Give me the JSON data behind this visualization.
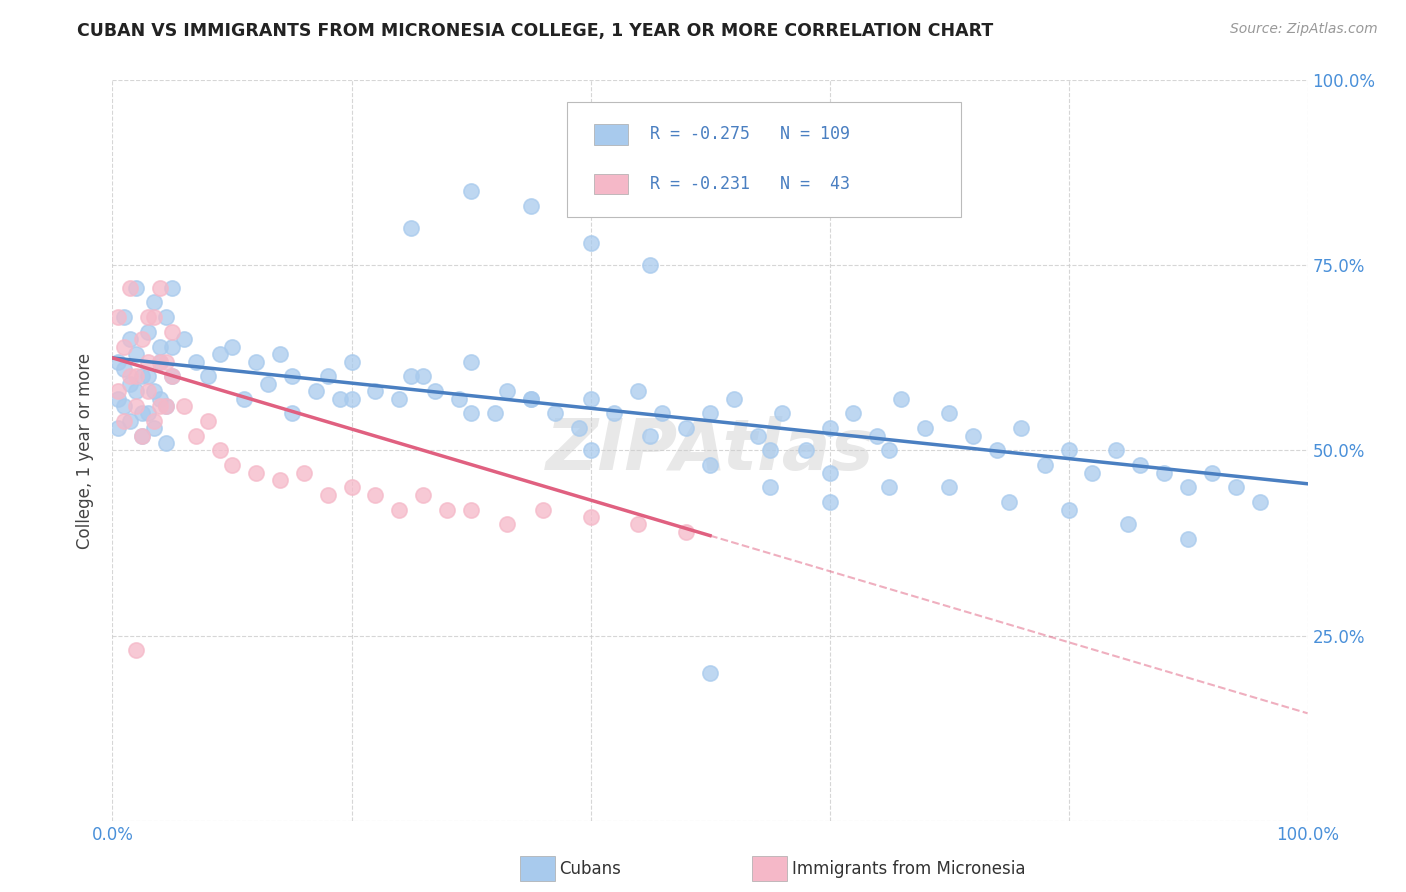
{
  "title": "CUBAN VS IMMIGRANTS FROM MICRONESIA COLLEGE, 1 YEAR OR MORE CORRELATION CHART",
  "source": "Source: ZipAtlas.com",
  "ylabel": "College, 1 year or more",
  "xlim": [
    0.0,
    1.0
  ],
  "ylim": [
    0.0,
    1.0
  ],
  "legend_r1": "-0.275",
  "legend_n1": "109",
  "legend_r2": "-0.231",
  "legend_n2": " 43",
  "legend_label1": "Cubans",
  "legend_label2": "Immigrants from Micronesia",
  "blue_color": "#A8CAED",
  "pink_color": "#F5B8C8",
  "blue_line_color": "#4A7FC1",
  "pink_line_color": "#E06080",
  "axis_color": "#4A90D9",
  "grid_color": "#CCCCCC",
  "watermark": "ZIPAtlas",
  "trendline_blue_x0": 0.0,
  "trendline_blue_y0": 0.625,
  "trendline_blue_x1": 1.0,
  "trendline_blue_y1": 0.455,
  "trendline_pink_x0": 0.0,
  "trendline_pink_y0": 0.625,
  "trendline_pink_x1": 0.5,
  "trendline_pink_y1": 0.385,
  "trendline_pink_dash_x0": 0.5,
  "trendline_pink_dash_y0": 0.385,
  "trendline_pink_dash_x1": 1.0,
  "trendline_pink_dash_y1": 0.145,
  "cubans_x": [
    0.005,
    0.01,
    0.015,
    0.02,
    0.025,
    0.03,
    0.035,
    0.04,
    0.045,
    0.05,
    0.005,
    0.01,
    0.015,
    0.02,
    0.025,
    0.03,
    0.035,
    0.04,
    0.045,
    0.05,
    0.005,
    0.01,
    0.015,
    0.02,
    0.025,
    0.03,
    0.035,
    0.04,
    0.045,
    0.05,
    0.06,
    0.07,
    0.08,
    0.09,
    0.1,
    0.11,
    0.12,
    0.13,
    0.14,
    0.15,
    0.17,
    0.18,
    0.19,
    0.2,
    0.22,
    0.24,
    0.26,
    0.27,
    0.29,
    0.3,
    0.32,
    0.33,
    0.35,
    0.37,
    0.39,
    0.4,
    0.42,
    0.44,
    0.46,
    0.48,
    0.5,
    0.52,
    0.54,
    0.56,
    0.58,
    0.6,
    0.62,
    0.64,
    0.66,
    0.68,
    0.7,
    0.72,
    0.74,
    0.76,
    0.78,
    0.8,
    0.82,
    0.84,
    0.86,
    0.88,
    0.9,
    0.92,
    0.94,
    0.96,
    0.15,
    0.2,
    0.25,
    0.3,
    0.35,
    0.4,
    0.45,
    0.5,
    0.55,
    0.6,
    0.65,
    0.7,
    0.75,
    0.8,
    0.85,
    0.9,
    0.25,
    0.3,
    0.35,
    0.4,
    0.45,
    0.5,
    0.55,
    0.6,
    0.65
  ],
  "cubans_y": [
    0.62,
    0.68,
    0.65,
    0.72,
    0.6,
    0.66,
    0.7,
    0.64,
    0.68,
    0.72,
    0.57,
    0.61,
    0.59,
    0.63,
    0.55,
    0.6,
    0.58,
    0.62,
    0.56,
    0.64,
    0.53,
    0.56,
    0.54,
    0.58,
    0.52,
    0.55,
    0.53,
    0.57,
    0.51,
    0.6,
    0.65,
    0.62,
    0.6,
    0.63,
    0.64,
    0.57,
    0.62,
    0.59,
    0.63,
    0.6,
    0.58,
    0.6,
    0.57,
    0.62,
    0.58,
    0.57,
    0.6,
    0.58,
    0.57,
    0.62,
    0.55,
    0.58,
    0.57,
    0.55,
    0.53,
    0.57,
    0.55,
    0.58,
    0.55,
    0.53,
    0.55,
    0.57,
    0.52,
    0.55,
    0.5,
    0.53,
    0.55,
    0.52,
    0.57,
    0.53,
    0.55,
    0.52,
    0.5,
    0.53,
    0.48,
    0.5,
    0.47,
    0.5,
    0.48,
    0.47,
    0.45,
    0.47,
    0.45,
    0.43,
    0.55,
    0.57,
    0.6,
    0.55,
    0.57,
    0.5,
    0.52,
    0.48,
    0.5,
    0.47,
    0.5,
    0.45,
    0.43,
    0.42,
    0.4,
    0.38,
    0.8,
    0.85,
    0.83,
    0.78,
    0.75,
    0.2,
    0.45,
    0.43,
    0.45
  ],
  "micronesia_x": [
    0.005,
    0.01,
    0.015,
    0.02,
    0.025,
    0.03,
    0.035,
    0.04,
    0.045,
    0.05,
    0.005,
    0.01,
    0.015,
    0.02,
    0.025,
    0.03,
    0.035,
    0.04,
    0.045,
    0.05,
    0.06,
    0.07,
    0.08,
    0.09,
    0.1,
    0.12,
    0.14,
    0.16,
    0.18,
    0.2,
    0.22,
    0.24,
    0.26,
    0.28,
    0.3,
    0.33,
    0.36,
    0.4,
    0.44,
    0.48,
    0.02,
    0.03,
    0.04
  ],
  "micronesia_y": [
    0.68,
    0.64,
    0.72,
    0.6,
    0.65,
    0.62,
    0.68,
    0.56,
    0.62,
    0.66,
    0.58,
    0.54,
    0.6,
    0.56,
    0.52,
    0.58,
    0.54,
    0.62,
    0.56,
    0.6,
    0.56,
    0.52,
    0.54,
    0.5,
    0.48,
    0.47,
    0.46,
    0.47,
    0.44,
    0.45,
    0.44,
    0.42,
    0.44,
    0.42,
    0.42,
    0.4,
    0.42,
    0.41,
    0.4,
    0.39,
    0.23,
    0.68,
    0.72
  ]
}
